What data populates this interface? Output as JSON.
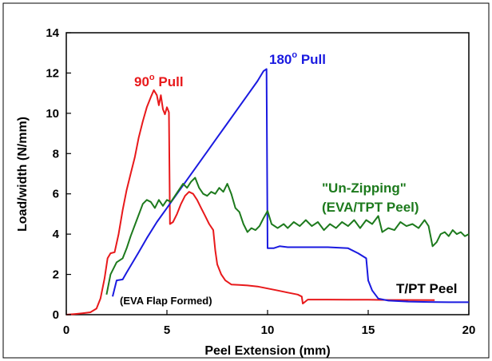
{
  "chart_data": {
    "type": "line",
    "title": "",
    "xlabel": "Peel Extension (mm)",
    "ylabel": "Load/width (N/mm)",
    "xlim": [
      0,
      20
    ],
    "ylim": [
      0,
      14
    ],
    "x_ticks": [
      0,
      5,
      10,
      15,
      20
    ],
    "y_ticks": [
      0,
      2,
      4,
      6,
      8,
      10,
      12,
      14
    ],
    "grid": false,
    "legend": "none",
    "annotations": [
      {
        "text": "90",
        "sup": "o",
        "text2": " Pull",
        "color": "#e8191b"
      },
      {
        "text": "180",
        "sup": "o",
        "text2": " Pull",
        "color": "#1a1ae0"
      },
      {
        "text": "\"Un-Zipping\"",
        "color": "#1d7a1d"
      },
      {
        "text": "(EVA/TPT Peel)",
        "color": "#1d7a1d"
      },
      {
        "text": "T/PT Peel",
        "color": "#000000"
      },
      {
        "text": "(EVA Flap Formed)",
        "color": "#000000"
      }
    ],
    "series": [
      {
        "color": "#e8191b",
        "points": [
          [
            0.0,
            0.0
          ],
          [
            0.4,
            0.03
          ],
          [
            0.8,
            0.07
          ],
          [
            1.2,
            0.12
          ],
          [
            1.5,
            0.3
          ],
          [
            1.7,
            0.8
          ],
          [
            1.9,
            1.8
          ],
          [
            2.05,
            2.8
          ],
          [
            2.2,
            3.05
          ],
          [
            2.4,
            3.1
          ],
          [
            2.6,
            4.0
          ],
          [
            2.8,
            5.2
          ],
          [
            3.0,
            6.2
          ],
          [
            3.2,
            7.0
          ],
          [
            3.4,
            7.8
          ],
          [
            3.6,
            8.8
          ],
          [
            3.8,
            9.6
          ],
          [
            4.0,
            10.3
          ],
          [
            4.2,
            10.8
          ],
          [
            4.35,
            11.15
          ],
          [
            4.5,
            10.9
          ],
          [
            4.6,
            10.4
          ],
          [
            4.7,
            10.9
          ],
          [
            4.8,
            10.2
          ],
          [
            4.9,
            9.95
          ],
          [
            5.0,
            10.3
          ],
          [
            5.1,
            10.05
          ],
          [
            5.15,
            4.5
          ],
          [
            5.3,
            4.6
          ],
          [
            5.5,
            5.0
          ],
          [
            5.7,
            5.5
          ],
          [
            5.9,
            5.9
          ],
          [
            6.1,
            6.1
          ],
          [
            6.3,
            6.0
          ],
          [
            6.5,
            5.7
          ],
          [
            6.7,
            5.3
          ],
          [
            6.9,
            4.9
          ],
          [
            7.1,
            4.5
          ],
          [
            7.3,
            4.2
          ],
          [
            7.4,
            3.2
          ],
          [
            7.5,
            2.5
          ],
          [
            7.7,
            2.0
          ],
          [
            7.9,
            1.7
          ],
          [
            8.2,
            1.5
          ],
          [
            8.6,
            1.48
          ],
          [
            9.0,
            1.45
          ],
          [
            9.5,
            1.4
          ],
          [
            10.0,
            1.3
          ],
          [
            10.5,
            1.2
          ],
          [
            11.0,
            1.1
          ],
          [
            11.5,
            1.0
          ],
          [
            11.7,
            0.9
          ],
          [
            11.75,
            0.55
          ],
          [
            12.0,
            0.75
          ],
          [
            13.0,
            0.75
          ],
          [
            14.0,
            0.74
          ],
          [
            15.0,
            0.74
          ],
          [
            16.0,
            0.73
          ],
          [
            17.0,
            0.73
          ],
          [
            18.3,
            0.72
          ]
        ]
      },
      {
        "color": "#1a1ae0",
        "points": [
          [
            2.3,
            0.9
          ],
          [
            2.5,
            1.7
          ],
          [
            2.8,
            1.75
          ],
          [
            3.0,
            2.1
          ],
          [
            3.3,
            2.6
          ],
          [
            3.6,
            3.1
          ],
          [
            4.0,
            3.8
          ],
          [
            4.5,
            4.6
          ],
          [
            5.0,
            5.3
          ],
          [
            5.5,
            6.0
          ],
          [
            6.0,
            6.7
          ],
          [
            6.5,
            7.4
          ],
          [
            7.0,
            8.1
          ],
          [
            7.5,
            8.8
          ],
          [
            8.0,
            9.5
          ],
          [
            8.5,
            10.2
          ],
          [
            9.0,
            10.9
          ],
          [
            9.5,
            11.6
          ],
          [
            9.8,
            12.1
          ],
          [
            9.95,
            12.2
          ],
          [
            10.0,
            3.3
          ],
          [
            10.3,
            3.3
          ],
          [
            10.6,
            3.4
          ],
          [
            11.0,
            3.35
          ],
          [
            12.0,
            3.35
          ],
          [
            13.0,
            3.35
          ],
          [
            14.0,
            3.3
          ],
          [
            14.5,
            3.05
          ],
          [
            14.9,
            2.8
          ],
          [
            15.0,
            1.7
          ],
          [
            15.2,
            1.2
          ],
          [
            15.5,
            0.8
          ],
          [
            16.0,
            0.7
          ],
          [
            17.0,
            0.65
          ],
          [
            18.0,
            0.63
          ],
          [
            19.0,
            0.62
          ],
          [
            20.0,
            0.62
          ]
        ]
      },
      {
        "color": "#1d7a1d",
        "points": [
          [
            2.0,
            1.0
          ],
          [
            2.2,
            2.0
          ],
          [
            2.5,
            2.6
          ],
          [
            2.8,
            2.8
          ],
          [
            3.0,
            3.3
          ],
          [
            3.2,
            3.9
          ],
          [
            3.5,
            4.7
          ],
          [
            3.8,
            5.5
          ],
          [
            4.0,
            5.7
          ],
          [
            4.2,
            5.6
          ],
          [
            4.4,
            5.3
          ],
          [
            4.6,
            5.7
          ],
          [
            4.8,
            5.4
          ],
          [
            5.0,
            5.7
          ],
          [
            5.2,
            5.6
          ],
          [
            5.4,
            5.9
          ],
          [
            5.6,
            6.2
          ],
          [
            5.8,
            6.5
          ],
          [
            6.0,
            6.3
          ],
          [
            6.2,
            6.6
          ],
          [
            6.4,
            6.8
          ],
          [
            6.6,
            6.3
          ],
          [
            6.8,
            6.0
          ],
          [
            7.0,
            5.9
          ],
          [
            7.2,
            6.1
          ],
          [
            7.4,
            6.0
          ],
          [
            7.6,
            6.3
          ],
          [
            7.8,
            6.1
          ],
          [
            8.0,
            6.5
          ],
          [
            8.2,
            6.0
          ],
          [
            8.4,
            5.3
          ],
          [
            8.6,
            5.1
          ],
          [
            8.8,
            4.5
          ],
          [
            9.0,
            4.1
          ],
          [
            9.2,
            4.3
          ],
          [
            9.4,
            4.2
          ],
          [
            9.6,
            4.4
          ],
          [
            9.8,
            4.8
          ],
          [
            10.0,
            5.15
          ],
          [
            10.2,
            4.5
          ],
          [
            10.5,
            4.3
          ],
          [
            10.8,
            4.5
          ],
          [
            11.0,
            4.3
          ],
          [
            11.3,
            4.6
          ],
          [
            11.6,
            4.4
          ],
          [
            11.9,
            4.7
          ],
          [
            12.2,
            4.4
          ],
          [
            12.5,
            4.6
          ],
          [
            12.8,
            4.2
          ],
          [
            13.1,
            4.5
          ],
          [
            13.4,
            4.3
          ],
          [
            13.7,
            4.6
          ],
          [
            14.0,
            4.4
          ],
          [
            14.3,
            4.7
          ],
          [
            14.6,
            4.3
          ],
          [
            14.9,
            4.7
          ],
          [
            15.2,
            4.5
          ],
          [
            15.5,
            4.9
          ],
          [
            15.7,
            4.1
          ],
          [
            16.0,
            4.3
          ],
          [
            16.3,
            4.2
          ],
          [
            16.6,
            4.6
          ],
          [
            16.9,
            4.4
          ],
          [
            17.2,
            4.5
          ],
          [
            17.5,
            4.3
          ],
          [
            17.8,
            4.7
          ],
          [
            18.0,
            4.4
          ],
          [
            18.2,
            3.4
          ],
          [
            18.4,
            3.6
          ],
          [
            18.6,
            4.0
          ],
          [
            18.8,
            4.1
          ],
          [
            19.0,
            3.9
          ],
          [
            19.2,
            4.2
          ],
          [
            19.4,
            4.0
          ],
          [
            19.6,
            4.1
          ],
          [
            19.8,
            3.9
          ],
          [
            20.0,
            4.0
          ]
        ]
      }
    ]
  }
}
